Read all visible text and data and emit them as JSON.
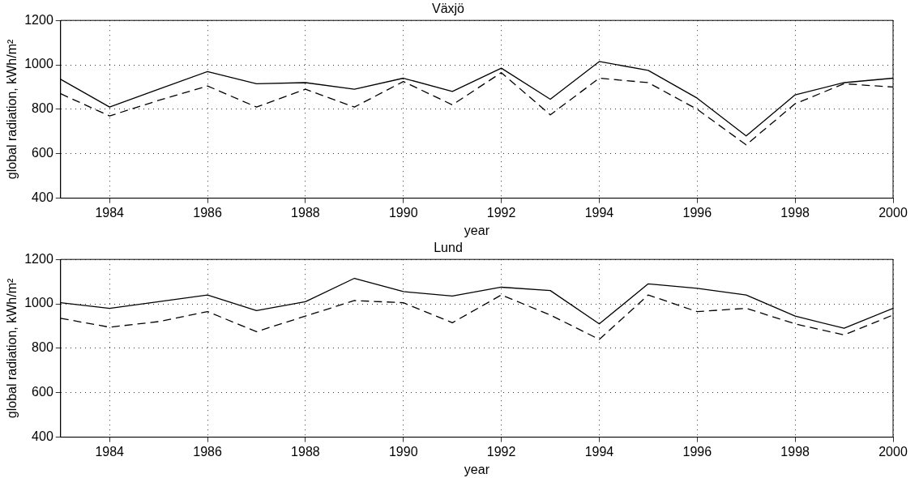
{
  "chart_data": [
    {
      "type": "line",
      "title": "Växjö",
      "xlabel": "year",
      "ylabel": "global radiation, kWh/m²",
      "x": [
        1983,
        1984,
        1985,
        1986,
        1987,
        1988,
        1989,
        1990,
        1991,
        1992,
        1993,
        1994,
        1995,
        1996,
        1997,
        1998,
        1999,
        2000
      ],
      "series": [
        {
          "color": "#000000",
          "line_style": "solid",
          "values": [
            935,
            810,
            890,
            970,
            915,
            920,
            890,
            940,
            880,
            985,
            845,
            1015,
            975,
            850,
            680,
            865,
            920,
            940
          ]
        },
        {
          "color": "#000000",
          "line_style": "dashed",
          "values": [
            870,
            770,
            840,
            905,
            810,
            890,
            810,
            925,
            820,
            965,
            775,
            940,
            920,
            800,
            640,
            825,
            915,
            900
          ]
        }
      ],
      "xlim": [
        1983,
        2000
      ],
      "xticks": [
        1984,
        1986,
        1988,
        1990,
        1992,
        1994,
        1996,
        1998,
        2000
      ],
      "ylim": [
        400,
        1200
      ],
      "yticks": [
        400,
        600,
        800,
        1000,
        1200
      ],
      "grid": true,
      "marker": "none",
      "legend": false
    },
    {
      "type": "line",
      "title": "Lund",
      "xlabel": "year",
      "ylabel": "global radiation, kWh/m²",
      "x": [
        1983,
        1984,
        1985,
        1986,
        1987,
        1988,
        1989,
        1990,
        1991,
        1992,
        1993,
        1994,
        1995,
        1996,
        1997,
        1998,
        1999,
        2000
      ],
      "series": [
        {
          "color": "#000000",
          "line_style": "solid",
          "values": [
            1005,
            980,
            1010,
            1040,
            970,
            1010,
            1115,
            1055,
            1035,
            1075,
            1060,
            910,
            1090,
            1070,
            1040,
            945,
            890,
            980
          ]
        },
        {
          "color": "#000000",
          "line_style": "dashed",
          "values": [
            935,
            895,
            920,
            965,
            875,
            945,
            1015,
            1005,
            915,
            1040,
            950,
            840,
            1040,
            965,
            980,
            910,
            860,
            950
          ]
        }
      ],
      "xlim": [
        1983,
        2000
      ],
      "xticks": [
        1984,
        1986,
        1988,
        1990,
        1992,
        1994,
        1996,
        1998,
        2000
      ],
      "ylim": [
        400,
        1200
      ],
      "yticks": [
        400,
        600,
        800,
        1000,
        1200
      ],
      "grid": true,
      "marker": "none",
      "legend": false
    }
  ]
}
